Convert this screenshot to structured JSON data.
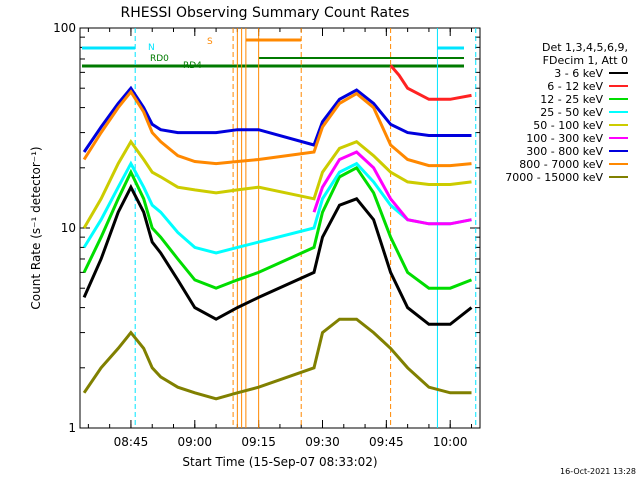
{
  "chart_data": {
    "type": "line",
    "title": "RHESSI Observing Summary Count Rates",
    "xlabel": "Start Time (15-Sep-07 08:33:02)",
    "ylabel": "Count Rate (s⁻¹ detector⁻¹)",
    "yscale": "log",
    "ylim": [
      1,
      100
    ],
    "xlim": [
      "08:33:02",
      "10:07:00"
    ],
    "x_ticks": [
      "08:45",
      "09:00",
      "09:15",
      "09:30",
      "09:45",
      "10:00"
    ],
    "y_ticks": [
      "1",
      "10",
      "100"
    ],
    "legend_header": [
      "Det 1,3,4,5,6,9,",
      "FDecim 1, Att 0"
    ],
    "legend_position": "right",
    "timestamp": "16-Oct-2021 13:28",
    "annotations": [
      {
        "label": "N",
        "color": "#00e5ff"
      },
      {
        "label": "RD0",
        "color": "#007a00"
      },
      {
        "label": "RD4",
        "color": "#007a00"
      },
      {
        "label": "S",
        "color": "#ff8800"
      }
    ],
    "series": [
      {
        "name": "3 - 6 keV",
        "color": "#000000",
        "x": [
          "08:34",
          "08:38",
          "08:42",
          "08:45",
          "08:48",
          "08:50",
          "08:52",
          "08:56",
          "09:00",
          "09:05",
          "09:10",
          "09:15",
          "09:28",
          "09:30",
          "09:34",
          "09:38",
          "09:42",
          "09:46",
          "09:50",
          "09:55",
          "10:00",
          "10:05"
        ],
        "y": [
          4.5,
          7,
          12,
          16,
          12,
          8.5,
          7.5,
          5.5,
          4,
          3.5,
          4,
          4.5,
          6,
          9,
          13,
          14,
          11,
          6,
          4,
          3.3,
          3.3,
          4
        ]
      },
      {
        "name": "6 - 12 keV",
        "color": "#ff2222",
        "x": [
          "09:46",
          "09:48",
          "09:50",
          "09:55",
          "10:00",
          "10:05"
        ],
        "y": [
          65,
          58,
          50,
          44,
          44,
          46
        ]
      },
      {
        "name": "12 - 25 keV",
        "color": "#00dd00",
        "x": [
          "08:34",
          "08:38",
          "08:42",
          "08:45",
          "08:48",
          "08:50",
          "08:52",
          "08:56",
          "09:00",
          "09:05",
          "09:10",
          "09:15",
          "09:28",
          "09:30",
          "09:34",
          "09:38",
          "09:42",
          "09:46",
          "09:50",
          "09:55",
          "10:00",
          "10:05"
        ],
        "y": [
          6,
          9,
          14,
          19,
          14,
          10,
          9,
          7,
          5.5,
          5,
          5.5,
          6,
          8,
          12,
          18,
          20,
          15,
          9,
          6,
          5,
          5,
          5.5
        ]
      },
      {
        "name": "25 - 50 keV",
        "color": "#00ffff",
        "x": [
          "08:34",
          "08:38",
          "08:42",
          "08:45",
          "08:48",
          "08:50",
          "08:52",
          "08:56",
          "09:00",
          "09:05",
          "09:10",
          "09:15",
          "09:28",
          "09:30",
          "09:34",
          "09:38",
          "09:42",
          "09:46",
          "09:50",
          "09:55",
          "10:00",
          "10:05"
        ],
        "y": [
          8,
          11,
          16,
          21,
          16,
          13,
          12,
          9.5,
          8,
          7.5,
          8,
          8.5,
          10,
          14,
          19,
          21,
          17,
          13,
          11,
          10.5,
          10.5,
          11
        ]
      },
      {
        "name": "50 - 100 keV",
        "color": "#cccc00",
        "x": [
          "08:34",
          "08:38",
          "08:42",
          "08:45",
          "08:48",
          "08:50",
          "08:52",
          "08:56",
          "09:00",
          "09:05",
          "09:10",
          "09:15",
          "09:28",
          "09:30",
          "09:34",
          "09:38",
          "09:42",
          "09:46",
          "09:50",
          "09:55",
          "10:00",
          "10:05"
        ],
        "y": [
          10,
          14,
          21,
          27,
          22,
          19,
          18,
          16,
          15.5,
          15,
          15.5,
          16,
          14,
          19,
          25,
          27,
          23,
          19,
          17,
          16.5,
          16.5,
          17
        ]
      },
      {
        "name": "100 - 300 keV",
        "color": "#ff00ff",
        "x": [
          "09:28",
          "09:30",
          "09:34",
          "09:38",
          "09:42",
          "09:46",
          "09:50",
          "09:55",
          "10:00",
          "10:05"
        ],
        "y": [
          12,
          16,
          22,
          24,
          20,
          14,
          11,
          10.5,
          10.5,
          11
        ]
      },
      {
        "name": "300 - 800 keV",
        "color": "#0000dd",
        "x": [
          "08:34",
          "08:38",
          "08:42",
          "08:45",
          "08:48",
          "08:50",
          "08:52",
          "08:56",
          "09:00",
          "09:05",
          "09:10",
          "09:15",
          "09:28",
          "09:30",
          "09:34",
          "09:38",
          "09:42",
          "09:46",
          "09:50",
          "09:55",
          "10:00",
          "10:05"
        ],
        "y": [
          24,
          32,
          42,
          50,
          40,
          33,
          31,
          30,
          30,
          30,
          31,
          31,
          26,
          34,
          44,
          49,
          42,
          33,
          30,
          29,
          29,
          29
        ]
      },
      {
        "name": "800 - 7000 keV",
        "color": "#ff8800",
        "x": [
          "08:34",
          "08:38",
          "08:42",
          "08:45",
          "08:48",
          "08:50",
          "08:52",
          "08:56",
          "09:00",
          "09:05",
          "09:10",
          "09:15",
          "09:28",
          "09:30",
          "09:34",
          "09:38",
          "09:42",
          "09:46",
          "09:50",
          "09:55",
          "10:00",
          "10:05"
        ],
        "y": [
          22,
          30,
          40,
          48,
          38,
          30,
          27,
          23,
          21.5,
          21,
          21.5,
          22,
          24,
          32,
          42,
          47,
          40,
          26,
          22,
          20.5,
          20.5,
          21
        ]
      },
      {
        "name": "7000 - 15000 keV",
        "color": "#808000",
        "x": [
          "08:34",
          "08:38",
          "08:42",
          "08:45",
          "08:48",
          "08:50",
          "08:52",
          "08:56",
          "09:00",
          "09:05",
          "09:10",
          "09:15",
          "09:28",
          "09:30",
          "09:34",
          "09:38",
          "09:42",
          "09:46",
          "09:50",
          "09:55",
          "10:00",
          "10:05"
        ],
        "y": [
          1.5,
          2,
          2.5,
          3,
          2.5,
          2,
          1.8,
          1.6,
          1.5,
          1.4,
          1.5,
          1.6,
          2,
          3,
          3.5,
          3.5,
          3,
          2.5,
          2,
          1.6,
          1.5,
          1.5
        ]
      }
    ]
  }
}
